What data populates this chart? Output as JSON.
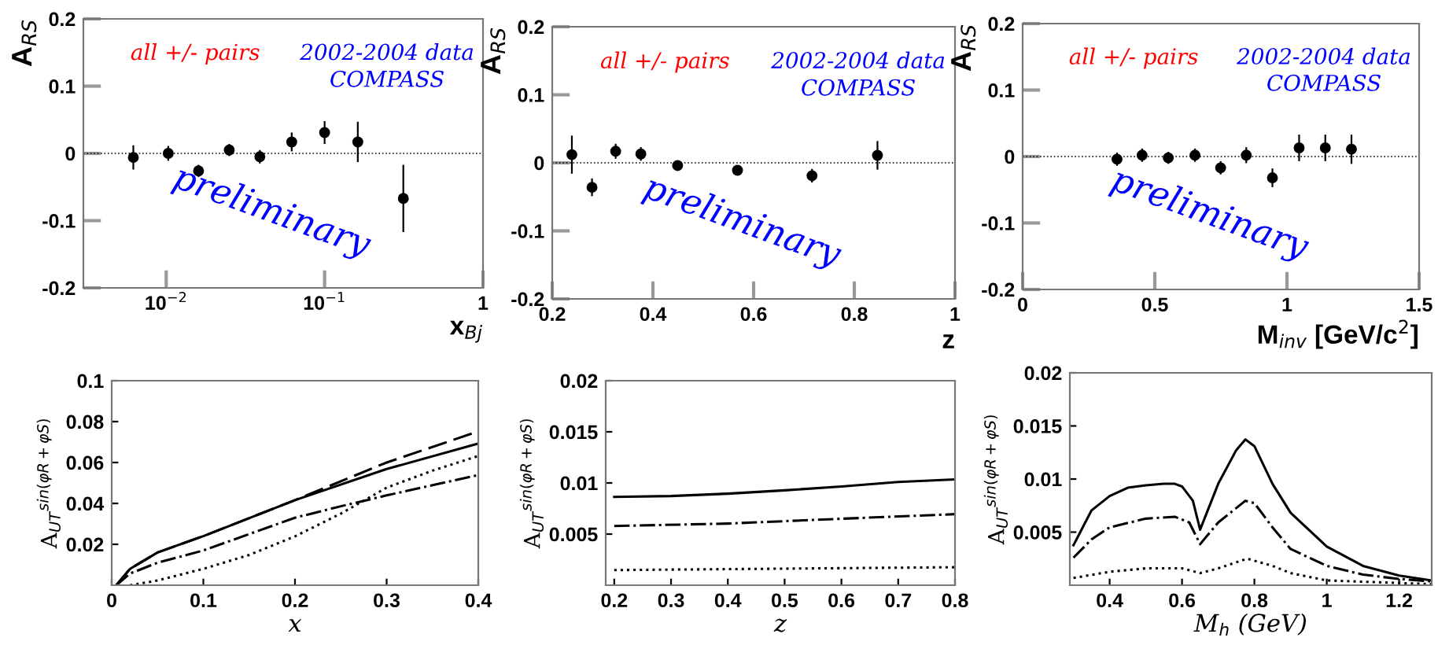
{
  "chart_data": [
    {
      "type": "scatter",
      "xlabel": "x$_{Bj}$",
      "ylabel": "A$_{RS}$",
      "log": "x",
      "xlim": [
        0.003,
        1
      ],
      "ylim": [
        -0.2,
        0.2
      ],
      "xticks": [
        {
          "value": 0.01,
          "label": "10$^{−2}$"
        },
        {
          "value": 0.1,
          "label": "10$^{−1}$"
        },
        1
      ],
      "yticks": [
        -0.2,
        -0.1,
        0,
        0.1,
        0.2
      ],
      "marker": "circle",
      "color": "#000000",
      "x": [
        0.0062,
        0.0103,
        0.016,
        0.025,
        0.039,
        0.062,
        0.1,
        0.162,
        0.314
      ],
      "values": [
        -0.006,
        0,
        -0.026,
        0.005,
        -0.005,
        0.017,
        0.031,
        0.017,
        -0.067
      ],
      "errors": [
        0.018,
        0.011,
        0.009,
        0.009,
        0.01,
        0.014,
        0.017,
        0.03,
        0.05
      ],
      "ref_lines": [
        {
          "axis": "y",
          "value": 0,
          "line_style": "dotted",
          "color": "#000000"
        }
      ],
      "annotations": [
        "all +/- pairs",
        "2002-2004 data",
        "COMPASS",
        "preliminary"
      ]
    },
    {
      "type": "scatter",
      "xlabel": "z",
      "ylabel": "A$_{RS}$",
      "xlim": [
        0.2,
        1
      ],
      "ylim": [
        -0.2,
        0.2
      ],
      "xticks": [
        0.2,
        0.4,
        0.6,
        0.8,
        1
      ],
      "yticks": [
        -0.2,
        -0.1,
        0,
        0.1,
        0.2
      ],
      "marker": "circle",
      "color": "#000000",
      "x": [
        0.239,
        0.279,
        0.326,
        0.376,
        0.449,
        0.568,
        0.716,
        0.846
      ],
      "values": [
        0.012,
        -0.036,
        0.017,
        0.013,
        -0.004,
        -0.011,
        -0.019,
        0.011
      ],
      "errors": [
        0.028,
        0.013,
        0.011,
        0.01,
        0.007,
        0.007,
        0.01,
        0.021
      ],
      "ref_lines": [
        {
          "axis": "y",
          "value": 0,
          "line_style": "dotted",
          "color": "#000000"
        }
      ],
      "annotations": [
        "all +/- pairs",
        "2002-2004 data",
        "COMPASS",
        "preliminary"
      ]
    },
    {
      "type": "scatter",
      "xlabel": "M$_{inv}$ [GeV/c$^{2}$]",
      "ylabel": "A$_{RS}$",
      "xlim": [
        0,
        1.5
      ],
      "ylim": [
        -0.2,
        0.2
      ],
      "xticks": [
        0,
        0.5,
        1,
        1.5
      ],
      "yticks": [
        -0.2,
        -0.1,
        0,
        0.1,
        0.2
      ],
      "marker": "circle",
      "color": "#000000",
      "x": [
        0.357,
        0.452,
        0.551,
        0.652,
        0.749,
        0.846,
        0.945,
        1.046,
        1.145,
        1.244
      ],
      "values": [
        -0.004,
        0.002,
        -0.002,
        0.002,
        -0.017,
        0.002,
        -0.032,
        0.013,
        0.013,
        0.011
      ],
      "errors": [
        0.01,
        0.01,
        0.009,
        0.01,
        0.01,
        0.012,
        0.014,
        0.02,
        0.02,
        0.022
      ],
      "ref_lines": [
        {
          "axis": "y",
          "value": 0,
          "line_style": "dotted",
          "color": "#000000"
        }
      ],
      "annotations": [
        "all +/- pairs",
        "2002-2004 data",
        "COMPASS",
        "preliminary"
      ]
    },
    {
      "type": "line",
      "xlabel": "x",
      "ylabel": "A$_{UT}$$^{sin(φR+φS)}$",
      "xlim": [
        0,
        0.4
      ],
      "ylim": [
        0,
        0.1
      ],
      "xticks": [
        0,
        0.1,
        0.2,
        0.3,
        0.4
      ],
      "yticks": [
        0.02,
        0.04,
        0.06,
        0.08,
        0.1
      ],
      "series": [
        {
          "color": "#000000",
          "line_style": "solid",
          "x": [
            0.005,
            0.02,
            0.05,
            0.1,
            0.2,
            0.3,
            0.4
          ],
          "values": [
            0,
            0.008,
            0.016,
            0.024,
            0.0416,
            0.0568,
            0.0693
          ]
        },
        {
          "color": "#000000",
          "line_style": "dashed",
          "x": [
            0.005,
            0.02,
            0.05,
            0.1,
            0.2,
            0.3,
            0.4
          ],
          "values": [
            0,
            0.008,
            0.016,
            0.024,
            0.0416,
            0.06,
            0.0752
          ]
        },
        {
          "color": "#000000",
          "line_style": "dashdot",
          "x": [
            0.005,
            0.02,
            0.05,
            0.1,
            0.2,
            0.25,
            0.3,
            0.4
          ],
          "values": [
            0,
            0.0057,
            0.011,
            0.017,
            0.033,
            0.0386,
            0.0439,
            0.0539
          ]
        },
        {
          "color": "#000000",
          "line_style": "dotted",
          "x": [
            0.02,
            0.05,
            0.1,
            0.15,
            0.2,
            0.25,
            0.3,
            0.35,
            0.4
          ],
          "values": [
            0,
            0.0023,
            0.008,
            0.0148,
            0.0239,
            0.035,
            0.0477,
            0.056,
            0.0632
          ]
        }
      ]
    },
    {
      "type": "line",
      "xlabel": "z",
      "ylabel": "A$_{UT}$$^{sin(φR+φS)}$",
      "xlim": [
        0.185,
        0.8
      ],
      "ylim": [
        0,
        0.02
      ],
      "xticks": [
        0.2,
        0.3,
        0.4,
        0.5,
        0.6,
        0.7,
        0.8
      ],
      "yticks": [
        0.005,
        0.01,
        0.015,
        0.02
      ],
      "series": [
        {
          "color": "#000000",
          "line_style": "solid",
          "x": [
            0.2,
            0.3,
            0.4,
            0.5,
            0.6,
            0.7,
            0.8
          ],
          "values": [
            0.00863,
            0.00872,
            0.00895,
            0.00928,
            0.00965,
            0.0101,
            0.01034
          ]
        },
        {
          "color": "#000000",
          "line_style": "dashdot",
          "x": [
            0.2,
            0.4,
            0.6,
            0.8
          ],
          "values": [
            0.00579,
            0.00603,
            0.0065,
            0.00695
          ]
        },
        {
          "color": "#000000",
          "line_style": "dotted",
          "x": [
            0.2,
            0.8
          ],
          "values": [
            0.00148,
            0.00176
          ]
        }
      ]
    },
    {
      "type": "line",
      "xlabel": "M$_{h}$ (GeV)",
      "ylabel": "A$_{UT}$$^{sin(φR+φS)}$",
      "xlim": [
        0.29,
        1.29
      ],
      "ylim": [
        0,
        0.02
      ],
      "xticks": [
        0.4,
        0.6,
        0.8,
        1,
        1.2
      ],
      "yticks": [
        0.005,
        0.01,
        0.015,
        0.02
      ],
      "series": [
        {
          "color": "#000000",
          "line_style": "solid",
          "x": [
            0.3,
            0.35,
            0.4,
            0.45,
            0.5,
            0.55,
            0.58,
            0.6,
            0.63,
            0.65,
            0.7,
            0.75,
            0.775,
            0.8,
            0.85,
            0.9,
            1.0,
            1.1,
            1.2,
            1.29
          ],
          "values": [
            0.00377,
            0.00705,
            0.0084,
            0.00918,
            0.0094,
            0.00955,
            0.00955,
            0.0093,
            0.00795,
            0.00523,
            0.00955,
            0.01273,
            0.01373,
            0.0131,
            0.00955,
            0.00682,
            0.00364,
            0.00182,
            0.00091,
            0.00045
          ]
        },
        {
          "color": "#000000",
          "line_style": "dashdot",
          "x": [
            0.3,
            0.35,
            0.4,
            0.5,
            0.58,
            0.62,
            0.65,
            0.7,
            0.775,
            0.8,
            0.85,
            0.9,
            1.0,
            1.1,
            1.2,
            1.29
          ],
          "values": [
            0.00259,
            0.00432,
            0.00545,
            0.00627,
            0.00645,
            0.00591,
            0.00386,
            0.00591,
            0.00795,
            0.00773,
            0.00545,
            0.00341,
            0.00182,
            0.001,
            0.00059,
            0.00036
          ]
        },
        {
          "color": "#000000",
          "line_style": "dotted",
          "x": [
            0.3,
            0.4,
            0.5,
            0.6,
            0.65,
            0.7,
            0.78,
            0.85,
            0.9,
            1.0,
            1.29
          ],
          "values": [
            0.00068,
            0.00127,
            0.00159,
            0.00159,
            0.00114,
            0.00159,
            0.0025,
            0.00182,
            0.00114,
            0.00045,
            0.0001
          ]
        }
      ]
    }
  ]
}
